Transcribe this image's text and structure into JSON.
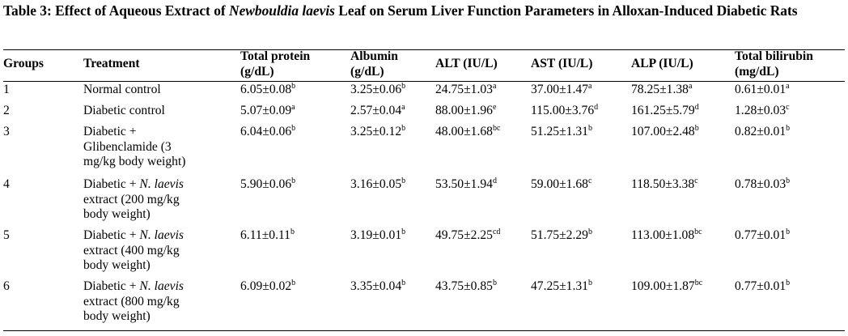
{
  "caption": {
    "prefix": "Table 3: Effect of Aqueous Extract of ",
    "species": "Newbouldia laevis",
    "suffix": " Leaf on Serum Liver Function Parameters in Alloxan-Induced Diabetic Rats"
  },
  "headers": {
    "groups": "Groups",
    "treatment": "Treatment",
    "total_protein": "Total protein (g/dL)",
    "albumin": "Albumin (g/dL)",
    "alt": "ALT (IU/L)",
    "ast": "AST (IU/L)",
    "alp": "ALP (IU/L)",
    "total_bilirubin": "Total bilirubin (mg/dL)"
  },
  "rows": [
    {
      "group": "1",
      "treatment_lines": [
        "Normal control"
      ],
      "tp": {
        "v": "6.05±0.08",
        "s": "b"
      },
      "alb": {
        "v": "3.25±0.06",
        "s": "b"
      },
      "alt": {
        "v": "24.75±1.03",
        "s": "a"
      },
      "ast": {
        "v": "37.00±1.47",
        "s": "a"
      },
      "alp": {
        "v": "78.25±1.38",
        "s": "a"
      },
      "tb": {
        "v": "0.61±0.01",
        "s": "a"
      }
    },
    {
      "group": "2",
      "treatment_lines": [
        "Diabetic control"
      ],
      "tp": {
        "v": "5.07±0.09",
        "s": "a"
      },
      "alb": {
        "v": "2.57±0.04",
        "s": "a"
      },
      "alt": {
        "v": "88.00±1.96",
        "s": "e"
      },
      "ast": {
        "v": "115.00±3.76",
        "s": "d"
      },
      "alp": {
        "v": "161.25±5.79",
        "s": "d"
      },
      "tb": {
        "v": "1.28±0.03",
        "s": "c"
      }
    },
    {
      "group": "3",
      "treatment_lines": [
        "Diabetic +",
        "Glibenclamide (3",
        "mg/kg body weight)"
      ],
      "tp": {
        "v": "6.04±0.06",
        "s": "b"
      },
      "alb": {
        "v": "3.25±0.12",
        "s": "b"
      },
      "alt": {
        "v": "48.00±1.68",
        "s": "bc"
      },
      "ast": {
        "v": "51.25±1.31",
        "s": "b"
      },
      "alp": {
        "v": "107.00±2.48",
        "s": "b"
      },
      "tb": {
        "v": "0.82±0.01",
        "s": "b"
      }
    },
    {
      "group": "4",
      "treatment_prefix": "Diabetic + ",
      "treatment_italic": "N. laevis",
      "treatment_lines": [
        "extract (200 mg/kg",
        "body weight)"
      ],
      "tp": {
        "v": "5.90±0.06",
        "s": "b"
      },
      "alb": {
        "v": "3.16±0.05",
        "s": "b"
      },
      "alt": {
        "v": "53.50±1.94",
        "s": "d"
      },
      "ast": {
        "v": "59.00±1.68",
        "s": "c"
      },
      "alp": {
        "v": "118.50±3.38",
        "s": "c"
      },
      "tb": {
        "v": "0.78±0.03",
        "s": "b"
      }
    },
    {
      "group": "5",
      "treatment_prefix": "Diabetic + ",
      "treatment_italic": "N. laevis",
      "treatment_lines": [
        "extract (400 mg/kg",
        "body weight)"
      ],
      "tp": {
        "v": "6.11±0.11",
        "s": "b"
      },
      "alb": {
        "v": "3.19±0.01",
        "s": "b"
      },
      "alt": {
        "v": "49.75±2.25",
        "s": "cd"
      },
      "ast": {
        "v": "51.75±2.29",
        "s": "b"
      },
      "alp": {
        "v": "113.00±1.08",
        "s": "bc"
      },
      "tb": {
        "v": "0.77±0.01",
        "s": "b"
      }
    },
    {
      "group": "6",
      "treatment_prefix": "Diabetic + ",
      "treatment_italic": "N. laevis",
      "treatment_lines": [
        "extract (800 mg/kg",
        "body weight)"
      ],
      "tp": {
        "v": "6.09±0.02",
        "s": "b"
      },
      "alb": {
        "v": "3.35±0.04",
        "s": "b"
      },
      "alt": {
        "v": "43.75±0.85",
        "s": "b"
      },
      "ast": {
        "v": "47.25±1.31",
        "s": "b"
      },
      "alp": {
        "v": "109.00±1.87",
        "s": "bc"
      },
      "tb": {
        "v": "0.77±0.01",
        "s": "b"
      }
    }
  ]
}
